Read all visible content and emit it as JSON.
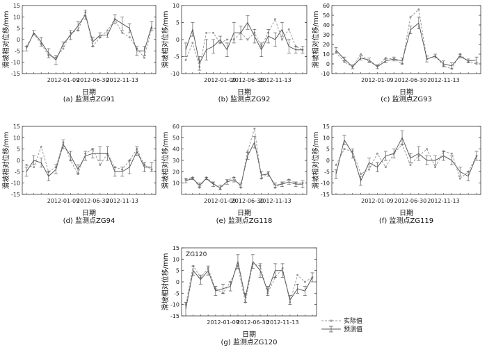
{
  "figure": {
    "legend": {
      "actual": "实际值",
      "predicted": "预测值"
    }
  },
  "colors": {
    "actual": "#9a9a9a",
    "predicted": "#5a5a5a",
    "axis": "#333333"
  },
  "chart_data": [
    {
      "id": "zg91",
      "type": "line",
      "caption": "(a) 监测点ZG91",
      "xlabel": "日期",
      "ylabel": "滑坡相对位移/mm",
      "x_tick_labels": [
        "2012-01-09",
        "2012-06-30",
        "2012-11-13"
      ],
      "ylim": [
        -15,
        15
      ],
      "yticks": [
        -15,
        -10,
        -5,
        0,
        5,
        10,
        15
      ],
      "series": [
        {
          "name": "实际值",
          "values": [
            -3,
            2.5,
            -2,
            -7,
            -8,
            -4,
            3,
            4,
            12,
            -3,
            1,
            4,
            9,
            3,
            1,
            -4,
            -8,
            5
          ]
        },
        {
          "name": "预测值",
          "values": [
            -4,
            3,
            -1,
            -6,
            -9,
            -2,
            2,
            6,
            11,
            -1,
            2,
            2,
            9,
            7,
            5,
            -5,
            -5,
            6
          ],
          "errors": [
            1,
            1,
            2,
            2,
            2,
            1,
            2,
            2,
            2,
            2,
            1,
            1,
            2,
            3,
            2,
            2,
            2,
            2
          ]
        }
      ]
    },
    {
      "id": "zg92",
      "type": "line",
      "caption": "(b) 监测点ZG92",
      "xlabel": "日期",
      "ylabel": "滑坡相对位移/mm",
      "x_tick_labels": [
        "2012-01-09",
        "2012-06-30",
        "2012-11-13"
      ],
      "ylim": [
        -10,
        10
      ],
      "yticks": [
        -10,
        -5,
        0,
        5,
        10
      ],
      "series": [
        {
          "name": "实际值",
          "values": [
            -6,
            -1,
            -8,
            2,
            2,
            -1,
            0,
            0,
            2,
            0,
            2,
            -2,
            2,
            6,
            0,
            3,
            -2,
            -3
          ]
        },
        {
          "name": "预测值",
          "values": [
            -3,
            3,
            -7,
            -3,
            -2,
            0,
            -3,
            2,
            2,
            5,
            1,
            -3,
            1,
            0,
            3,
            -2,
            -3,
            -3
          ],
          "errors": [
            2,
            2,
            2,
            3,
            2,
            1,
            2,
            3,
            2,
            2,
            2,
            2,
            2,
            2,
            2,
            2,
            1,
            1
          ]
        }
      ]
    },
    {
      "id": "zg93",
      "type": "line",
      "caption": "(c) 监测点ZG93",
      "xlabel": "日期",
      "ylabel": "滑坡相对位移/mm",
      "x_tick_labels": [
        "2012-01-09",
        "2012-06-30",
        "2012-11-13"
      ],
      "ylim": [
        -10,
        60
      ],
      "yticks": [
        -10,
        0,
        10,
        20,
        30,
        40,
        50,
        60
      ],
      "series": [
        {
          "name": "实际值",
          "values": [
            12,
            2,
            -3,
            10,
            2,
            -2,
            6,
            5,
            0,
            48,
            56,
            5,
            8,
            -2,
            -5,
            10,
            2,
            0
          ]
        },
        {
          "name": "预测值",
          "values": [
            14,
            5,
            -3,
            6,
            4,
            -3,
            3,
            5,
            3,
            35,
            42,
            5,
            8,
            0,
            -2,
            8,
            3,
            4
          ],
          "errors": [
            3,
            2,
            2,
            2,
            2,
            2,
            2,
            2,
            3,
            4,
            6,
            3,
            2,
            3,
            3,
            2,
            2,
            3
          ]
        }
      ]
    },
    {
      "id": "zg94",
      "type": "line",
      "caption": "(d) 监测点ZG94",
      "xlabel": "日期",
      "ylabel": "滑坡相对位移/mm",
      "x_tick_labels": [
        "2012-01-09",
        "2012-06-30",
        "2012-11-13"
      ],
      "ylim": [
        -15,
        15
      ],
      "yticks": [
        -15,
        -10,
        -5,
        0,
        5,
        10,
        15
      ],
      "series": [
        {
          "name": "实际值",
          "values": [
            -2,
            -3,
            6,
            -5,
            -3,
            8,
            0,
            -6,
            3,
            5,
            -2,
            3,
            -3,
            -4,
            0,
            5,
            -2,
            -4
          ]
        },
        {
          "name": "预测值",
          "values": [
            -5,
            0,
            -1,
            -7,
            -4,
            7,
            2,
            -4,
            2,
            3,
            3,
            3,
            -5,
            -5,
            -3,
            4,
            -3,
            -3
          ],
          "errors": [
            2,
            2,
            2,
            2,
            2,
            2,
            2,
            2,
            2,
            2,
            3,
            3,
            2,
            2,
            3,
            2,
            2,
            2
          ]
        }
      ]
    },
    {
      "id": "zg118",
      "type": "line",
      "caption": "(e) 监测点ZG118",
      "xlabel": "日期",
      "ylabel": "滑坡相对位移/mm",
      "x_tick_labels": [
        "2012-01-09",
        "2012-06-30",
        "2012-11-13"
      ],
      "ylim": [
        0,
        60
      ],
      "yticks": [
        10,
        20,
        30,
        40,
        50,
        60
      ],
      "series": [
        {
          "name": "实际值",
          "values": [
            13,
            15,
            6,
            15,
            10,
            5,
            12,
            15,
            6,
            38,
            58,
            14,
            19,
            6,
            10,
            13,
            10,
            10
          ]
        },
        {
          "name": "预测值",
          "values": [
            12,
            14,
            8,
            14,
            9,
            6,
            11,
            13,
            8,
            34,
            46,
            17,
            18,
            8,
            9,
            11,
            9,
            9
          ],
          "errors": [
            2,
            1,
            2,
            1,
            2,
            2,
            2,
            2,
            2,
            3,
            5,
            3,
            2,
            2,
            2,
            2,
            2,
            3
          ]
        }
      ]
    },
    {
      "id": "zg119",
      "type": "line",
      "caption": "(f) 监测点ZG119",
      "xlabel": "日期",
      "ylabel": "滑坡相对位移/mm",
      "x_tick_labels": [
        "2012-01-09",
        "2012-06-30",
        "2012-11-13"
      ],
      "ylim": [
        -15,
        15
      ],
      "yticks": [
        -15,
        -10,
        -5,
        0,
        5,
        10,
        15
      ],
      "series": [
        {
          "name": "实际值",
          "values": [
            -2,
            5,
            4,
            -6,
            -4,
            3,
            -3,
            3,
            7,
            -2,
            2,
            5,
            -3,
            4,
            3,
            -8,
            -5,
            2
          ]
        },
        {
          "name": "预测值",
          "values": [
            -6,
            9,
            3,
            -9,
            -1,
            -3,
            2,
            3,
            10,
            1,
            3,
            0,
            0,
            2,
            0,
            -5,
            -7,
            2
          ],
          "errors": [
            2,
            2,
            2,
            2,
            2,
            2,
            2,
            2,
            3,
            2,
            3,
            2,
            2,
            2,
            2,
            2,
            2,
            2
          ]
        }
      ]
    },
    {
      "id": "zg120",
      "type": "line",
      "caption": "(g) 监测点ZG120",
      "inner_title": "ZG120",
      "xlabel": "日期",
      "ylabel": "滑坡相对位移/mm",
      "x_tick_labels": [
        "2012-01-09",
        "2012-06-30",
        "2012-11-13"
      ],
      "ylim": [
        -15,
        15
      ],
      "yticks": [
        -15,
        -10,
        -5,
        0,
        5,
        10,
        15
      ],
      "series": [
        {
          "name": "实际值",
          "values": [
            -10,
            7,
            2,
            6,
            -3,
            -5,
            0,
            7,
            -9,
            8,
            7,
            -5,
            2,
            6,
            -9,
            3,
            0,
            2
          ]
        },
        {
          "name": "预测值",
          "values": [
            -12,
            5,
            1,
            5,
            -4,
            -3,
            -2,
            9,
            -7,
            9,
            5,
            -4,
            5,
            5,
            -8,
            -3,
            -4,
            2
          ],
          "errors": [
            3,
            2,
            2,
            2,
            2,
            2,
            2,
            3,
            2,
            3,
            3,
            2,
            3,
            3,
            2,
            2,
            2,
            2
          ]
        }
      ]
    }
  ]
}
